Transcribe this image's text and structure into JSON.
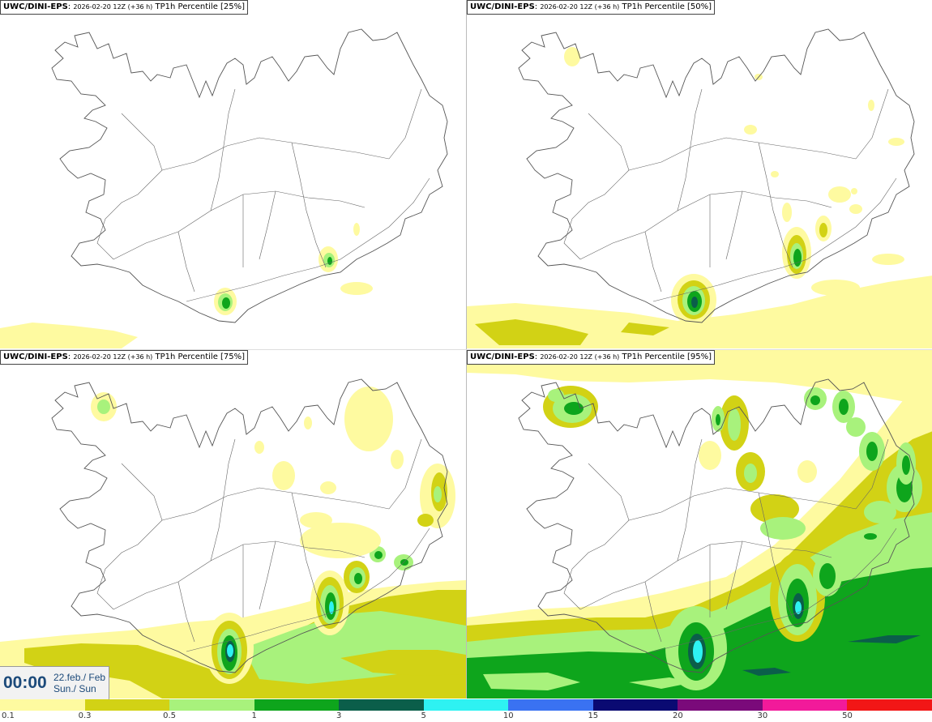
{
  "panels": [
    {
      "model": "UWC/DINI-EPS",
      "run": "2026-02-20 12Z (+36 h)",
      "field": "TP1h Percentile [25%]"
    },
    {
      "model": "UWC/DINI-EPS",
      "run": "2026-02-20 12Z (+36 h)",
      "field": "TP1h Percentile [50%]"
    },
    {
      "model": "UWC/DINI-EPS",
      "run": "2026-02-20 12Z (+36 h)",
      "field": "TP1h Percentile [75%]"
    },
    {
      "model": "UWC/DINI-EPS",
      "run": "2026-02-20 12Z (+36 h)",
      "field": "TP1h Percentile [95%]"
    }
  ],
  "time": {
    "clock": "00:00",
    "date_line1": "22.feb./ Feb",
    "date_line2": "Sun./ Sun"
  },
  "legend": {
    "labels": [
      "0.1",
      "0.3",
      "0.5",
      "1",
      "3",
      "5",
      "10",
      "15",
      "20",
      "30",
      "50"
    ],
    "colors": [
      "#fefaa0",
      "#d2d215",
      "#a8f27c",
      "#0ea51c",
      "#0b5e4a",
      "#2ef2f2",
      "#3a72f2",
      "#0a0a72",
      "#7a0a7a",
      "#f21a9a",
      "#f21616"
    ]
  }
}
